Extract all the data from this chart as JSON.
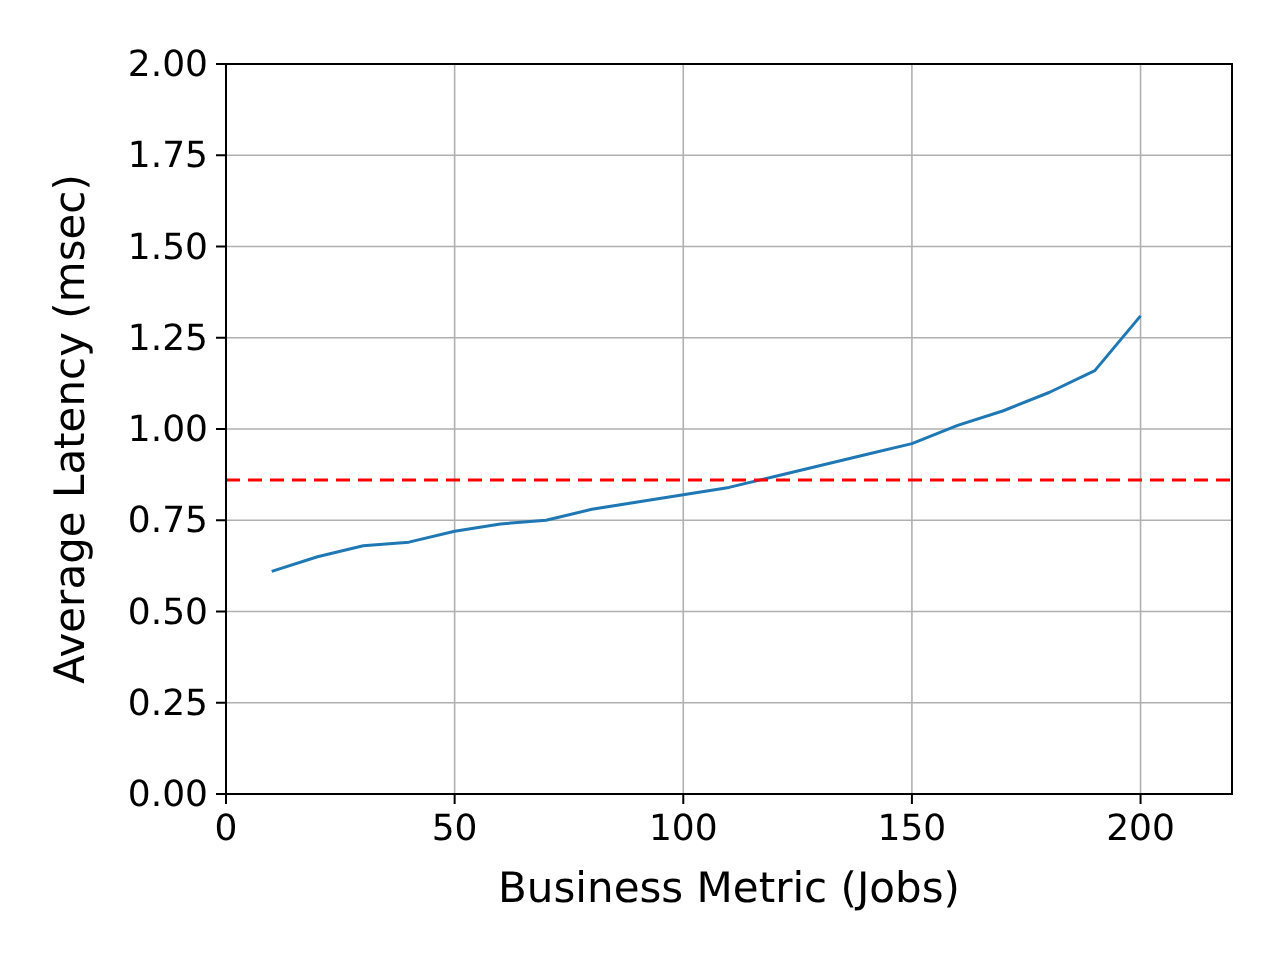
{
  "chart_data": {
    "type": "line",
    "xlabel": "Business Metric (Jobs)",
    "ylabel": "Average Latency (msec)",
    "x": [
      10,
      20,
      30,
      40,
      50,
      60,
      70,
      80,
      90,
      100,
      110,
      120,
      130,
      140,
      150,
      160,
      170,
      180,
      190,
      200
    ],
    "series": [
      {
        "color": "#1f77b4",
        "values": [
          0.61,
          0.65,
          0.68,
          0.69,
          0.72,
          0.74,
          0.75,
          0.78,
          0.8,
          0.82,
          0.84,
          0.87,
          0.9,
          0.93,
          0.96,
          1.01,
          1.05,
          1.1,
          1.16,
          1.31
        ]
      }
    ],
    "xlim": [
      0,
      220
    ],
    "xticks": [
      0,
      50,
      100,
      150,
      200
    ],
    "ylim": [
      0,
      2
    ],
    "yticks": [
      {
        "value": 0,
        "label": "0.00"
      },
      {
        "value": 0.25,
        "label": "0.25"
      },
      {
        "value": 0.5,
        "label": "0.50"
      },
      {
        "value": 0.75,
        "label": "0.75"
      },
      {
        "value": 1,
        "label": "1.00"
      },
      {
        "value": 1.25,
        "label": "1.25"
      },
      {
        "value": 1.5,
        "label": "1.50"
      },
      {
        "value": 1.75,
        "label": "1.75"
      },
      {
        "value": 2,
        "label": "2.00"
      }
    ],
    "ref_lines": [
      {
        "axis": "y",
        "value": 0.86,
        "color": "#ff0000",
        "line_style": "dashed"
      }
    ],
    "grid": true,
    "line_style": "solid"
  }
}
